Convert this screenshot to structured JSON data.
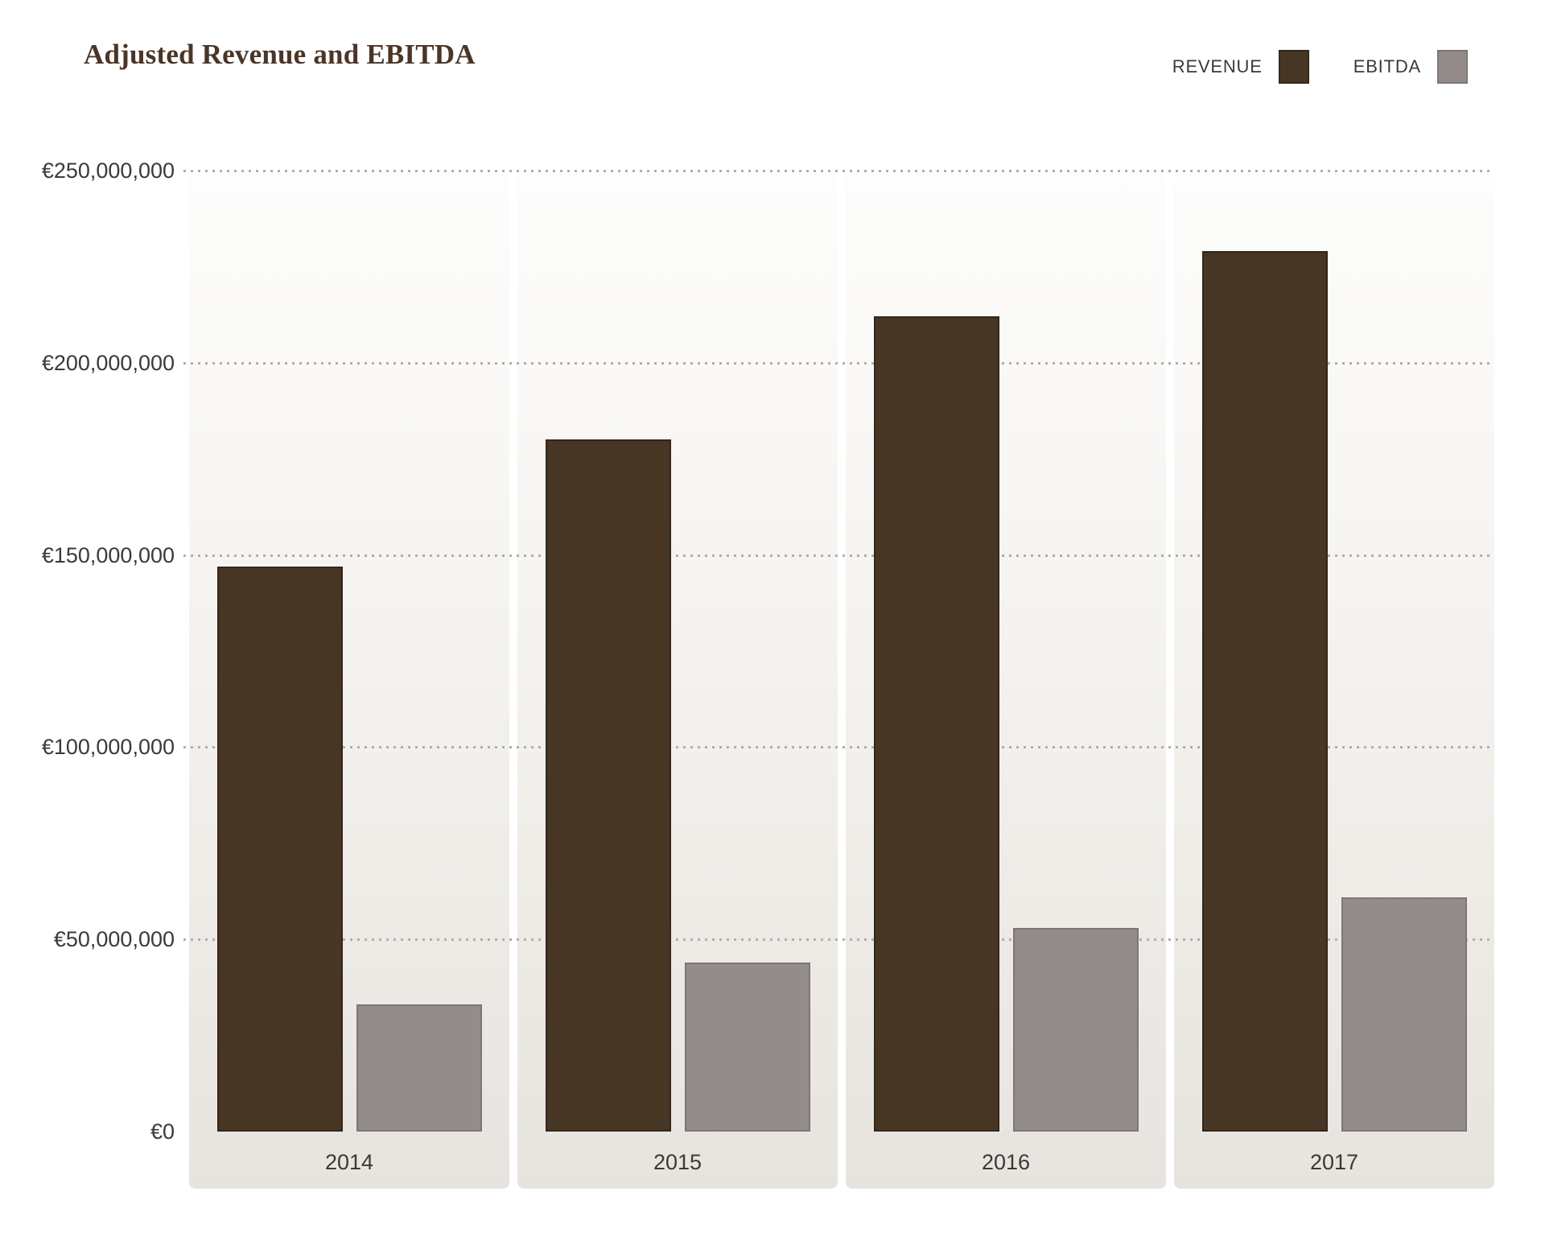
{
  "title": "Adjusted Revenue and EBITDA",
  "legend": [
    {
      "label": "REVENUE",
      "color": "#483624"
    },
    {
      "label": "EBITDA",
      "color": "#948b8b"
    }
  ],
  "y_axis": {
    "ticks": [
      {
        "label": "€250,000,000",
        "value": 250000000
      },
      {
        "label": "€200,000,000",
        "value": 200000000
      },
      {
        "label": "€150,000,000",
        "value": 150000000
      },
      {
        "label": "€100,000,000",
        "value": 100000000
      },
      {
        "label": "€50,000,000",
        "value": 50000000
      },
      {
        "label": "€0",
        "value": 0
      }
    ]
  },
  "chart_data": {
    "type": "bar",
    "title": "Adjusted Revenue and EBITDA",
    "categories": [
      "2014",
      "2015",
      "2016",
      "2017"
    ],
    "series": [
      {
        "name": "Revenue",
        "color": "#483624",
        "values": [
          147000000,
          180000000,
          212000000,
          229000000
        ]
      },
      {
        "name": "EBITDA",
        "color": "#948b8b",
        "values": [
          33000000,
          44000000,
          53000000,
          61000000
        ]
      }
    ],
    "xlabel": "",
    "ylabel": "",
    "ylim": [
      0,
      250000000
    ],
    "currency": "EUR",
    "grid": "horizontal-dotted",
    "legend_position": "top-right"
  }
}
